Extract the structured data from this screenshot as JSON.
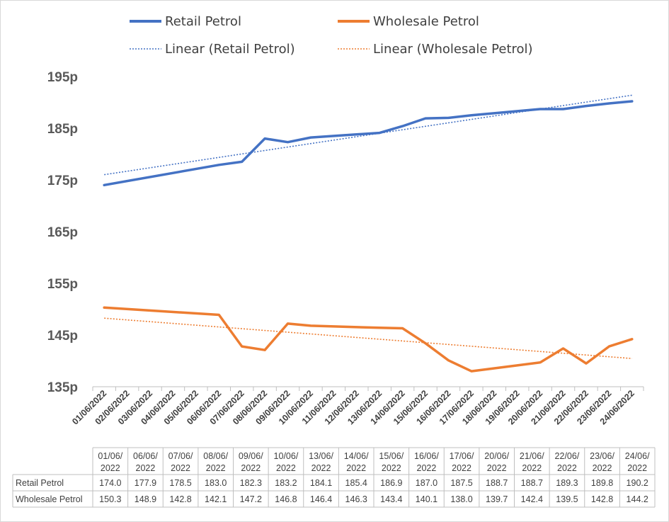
{
  "chart_data": {
    "type": "line",
    "title": "",
    "xlabel": "",
    "ylabel": "",
    "ylim": [
      135,
      195
    ],
    "y_ticks": [
      "195p",
      "185p",
      "175p",
      "165p",
      "155p",
      "145p",
      "135p"
    ],
    "y_tick_values": [
      195,
      185,
      175,
      165,
      155,
      145,
      135
    ],
    "x_axis_labels": [
      "01/06/2022",
      "02/06/2022",
      "03/06/2022",
      "04/06/2022",
      "05/06/2022",
      "06/06/2022",
      "07/06/2022",
      "08/06/2022",
      "09/06/2022",
      "10/06/2022",
      "11/06/2022",
      "12/06/2022",
      "13/06/2022",
      "14/06/2022",
      "15/06/2022",
      "16/06/2022",
      "17/06/2022",
      "18/06/2022",
      "19/06/2022",
      "20/06/2022",
      "21/06/2022",
      "22/06/2022",
      "23/06/2022",
      "24/06/2022"
    ],
    "x": [
      "01/06/2022",
      "06/06/2022",
      "07/06/2022",
      "08/06/2022",
      "09/06/2022",
      "10/06/2022",
      "13/06/2022",
      "14/06/2022",
      "15/06/2022",
      "16/06/2022",
      "17/06/2022",
      "20/06/2022",
      "21/06/2022",
      "22/06/2022",
      "23/06/2022",
      "24/06/2022"
    ],
    "table_headers": [
      [
        "01/06/",
        "2022"
      ],
      [
        "06/06/",
        "2022"
      ],
      [
        "07/06/",
        "2022"
      ],
      [
        "08/06/",
        "2022"
      ],
      [
        "09/06/",
        "2022"
      ],
      [
        "10/06/",
        "2022"
      ],
      [
        "13/06/",
        "2022"
      ],
      [
        "14/06/",
        "2022"
      ],
      [
        "15/06/",
        "2022"
      ],
      [
        "16/06/",
        "2022"
      ],
      [
        "17/06/",
        "2022"
      ],
      [
        "20/06/",
        "2022"
      ],
      [
        "21/06/",
        "2022"
      ],
      [
        "22/06/",
        "2022"
      ],
      [
        "23/06/",
        "2022"
      ],
      [
        "24/06/",
        "2022"
      ]
    ],
    "series": [
      {
        "name": "Retail Petrol",
        "color": "#4472C4",
        "values": [
          174.0,
          177.9,
          178.5,
          183.0,
          182.3,
          183.2,
          184.1,
          185.4,
          186.9,
          187.0,
          187.5,
          188.7,
          188.7,
          189.3,
          189.8,
          190.2
        ],
        "display_values": [
          "174.0",
          "177.9",
          "178.5",
          "183.0",
          "182.3",
          "183.2",
          "184.1",
          "185.4",
          "186.9",
          "187.0",
          "187.5",
          "188.7",
          "188.7",
          "189.3",
          "189.8",
          "190.2"
        ]
      },
      {
        "name": "Wholesale Petrol",
        "color": "#ED7D31",
        "values": [
          150.3,
          148.9,
          142.8,
          142.1,
          147.2,
          146.8,
          146.4,
          146.3,
          143.4,
          140.1,
          138.0,
          139.7,
          142.4,
          139.5,
          142.8,
          144.2
        ],
        "display_values": [
          "150.3",
          "148.9",
          "142.8",
          "142.1",
          "147.2",
          "146.8",
          "146.4",
          "146.3",
          "143.4",
          "140.1",
          "138.0",
          "139.7",
          "142.4",
          "139.5",
          "142.8",
          "144.2"
        ]
      }
    ],
    "trendlines": [
      {
        "name": "Linear (Retail Petrol)",
        "color": "#4472C4",
        "type": "linear"
      },
      {
        "name": "Linear (Wholesale Petrol)",
        "color": "#ED7D31",
        "type": "linear"
      }
    ],
    "legend": "top",
    "grid": false,
    "data_table": true
  }
}
